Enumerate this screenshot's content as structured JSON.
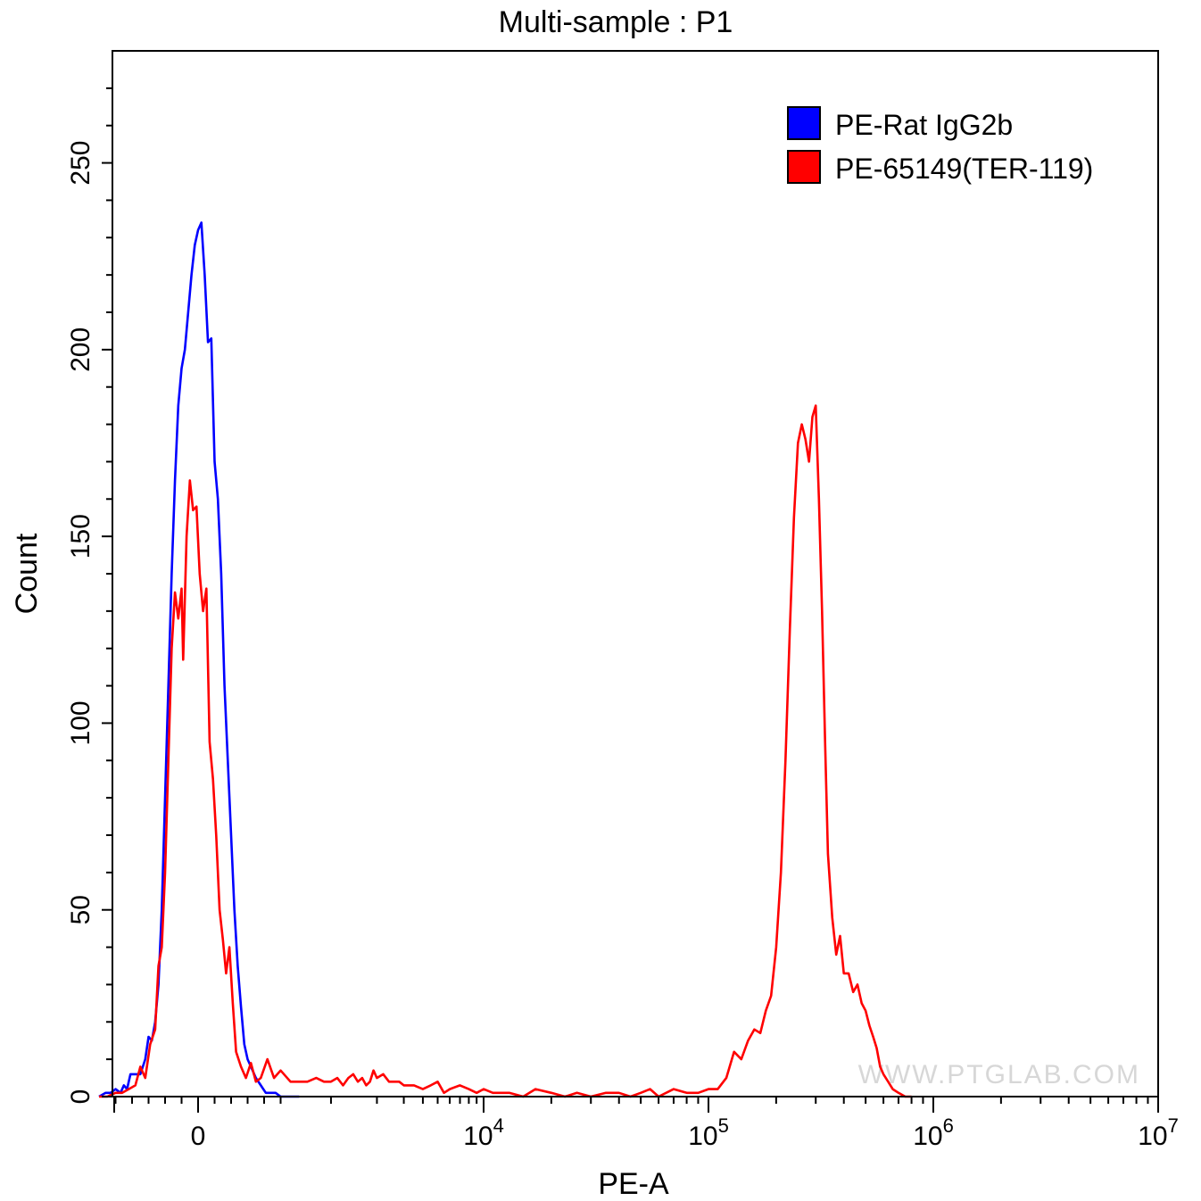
{
  "chart_data": {
    "type": "line",
    "title": "Multi-sample : P1",
    "xlabel": "PE-A",
    "ylabel": "Count",
    "x_scale": "biexponential",
    "x_ticks": [
      {
        "label": "0"
      },
      {
        "label": "10",
        "exp": "4"
      },
      {
        "label": "10",
        "exp": "5"
      },
      {
        "label": "10",
        "exp": "6"
      },
      {
        "label": "10",
        "exp": "7"
      }
    ],
    "y_ticks": [
      "0",
      "50",
      "100",
      "150",
      "200",
      "250"
    ],
    "ylim": [
      0,
      280
    ],
    "legend": {
      "placement": "top-right",
      "entries": [
        {
          "name": "PE-Rat IgG2b",
          "color": "#0000ff"
        },
        {
          "name": "PE-65149(TER-119)",
          "color": "#ff0000"
        }
      ]
    },
    "watermark": "WWW.PTGLAB.COM",
    "series": [
      {
        "name": "PE-Rat IgG2b",
        "color": "#0000ff",
        "points": [
          [
            -600,
            0
          ],
          [
            -560,
            1
          ],
          [
            -530,
            1
          ],
          [
            -500,
            2
          ],
          [
            -470,
            1
          ],
          [
            -450,
            3
          ],
          [
            -430,
            2
          ],
          [
            -410,
            6
          ],
          [
            -380,
            6
          ],
          [
            -350,
            6
          ],
          [
            -320,
            10
          ],
          [
            -300,
            16
          ],
          [
            -280,
            15
          ],
          [
            -260,
            20
          ],
          [
            -240,
            30
          ],
          [
            -220,
            50
          ],
          [
            -200,
            80
          ],
          [
            -180,
            110
          ],
          [
            -160,
            140
          ],
          [
            -140,
            165
          ],
          [
            -120,
            185
          ],
          [
            -100,
            195
          ],
          [
            -80,
            200
          ],
          [
            -60,
            210
          ],
          [
            -40,
            220
          ],
          [
            -20,
            228
          ],
          [
            0,
            232
          ],
          [
            20,
            234
          ],
          [
            40,
            220
          ],
          [
            60,
            202
          ],
          [
            80,
            203
          ],
          [
            100,
            170
          ],
          [
            120,
            160
          ],
          [
            140,
            140
          ],
          [
            160,
            110
          ],
          [
            180,
            90
          ],
          [
            200,
            70
          ],
          [
            220,
            50
          ],
          [
            240,
            35
          ],
          [
            260,
            24
          ],
          [
            280,
            14
          ],
          [
            300,
            10
          ],
          [
            320,
            8
          ],
          [
            350,
            5
          ],
          [
            380,
            3
          ],
          [
            410,
            1
          ],
          [
            440,
            1
          ],
          [
            470,
            1
          ],
          [
            500,
            0
          ],
          [
            530,
            0
          ],
          [
            570,
            0
          ],
          [
            620,
            0
          ]
        ]
      },
      {
        "name": "PE-65149(TER-119)",
        "color": "#ff0000",
        "points": [
          [
            -600,
            0
          ],
          [
            -550,
            0
          ],
          [
            -500,
            1
          ],
          [
            -460,
            1
          ],
          [
            -420,
            2
          ],
          [
            -380,
            3
          ],
          [
            -350,
            8
          ],
          [
            -320,
            5
          ],
          [
            -290,
            14
          ],
          [
            -260,
            18
          ],
          [
            -240,
            35
          ],
          [
            -220,
            40
          ],
          [
            -200,
            60
          ],
          [
            -180,
            90
          ],
          [
            -160,
            120
          ],
          [
            -140,
            135
          ],
          [
            -120,
            128
          ],
          [
            -100,
            136
          ],
          [
            -90,
            117
          ],
          [
            -70,
            150
          ],
          [
            -50,
            165
          ],
          [
            -30,
            157
          ],
          [
            -10,
            158
          ],
          [
            10,
            140
          ],
          [
            30,
            130
          ],
          [
            50,
            136
          ],
          [
            70,
            95
          ],
          [
            90,
            85
          ],
          [
            110,
            70
          ],
          [
            130,
            50
          ],
          [
            150,
            42
          ],
          [
            170,
            33
          ],
          [
            190,
            40
          ],
          [
            210,
            25
          ],
          [
            230,
            12
          ],
          [
            260,
            8
          ],
          [
            290,
            5
          ],
          [
            320,
            9
          ],
          [
            350,
            4
          ],
          [
            380,
            5
          ],
          [
            420,
            10
          ],
          [
            460,
            5
          ],
          [
            500,
            7
          ],
          [
            560,
            4
          ],
          [
            620,
            4
          ],
          [
            700,
            4
          ],
          [
            800,
            5
          ],
          [
            900,
            4
          ],
          [
            1000,
            4
          ],
          [
            1100,
            5
          ],
          [
            1200,
            3
          ],
          [
            1300,
            5
          ],
          [
            1400,
            6
          ],
          [
            1500,
            4
          ],
          [
            1600,
            5
          ],
          [
            1700,
            3
          ],
          [
            1800,
            4
          ],
          [
            1900,
            7
          ],
          [
            2000,
            5
          ],
          [
            2200,
            6
          ],
          [
            2400,
            4
          ],
          [
            2600,
            4
          ],
          [
            2800,
            4
          ],
          [
            3000,
            3
          ],
          [
            3500,
            3
          ],
          [
            4000,
            2
          ],
          [
            4500,
            3
          ],
          [
            5000,
            4
          ],
          [
            5500,
            1
          ],
          [
            6000,
            2
          ],
          [
            7000,
            3
          ],
          [
            8000,
            2
          ],
          [
            9000,
            1
          ],
          [
            10000,
            2
          ],
          [
            11000,
            1
          ],
          [
            13000,
            1
          ],
          [
            15000,
            0
          ],
          [
            17000,
            2
          ],
          [
            20000,
            1
          ],
          [
            23000,
            0
          ],
          [
            26000,
            1
          ],
          [
            30000,
            0
          ],
          [
            35000,
            1
          ],
          [
            40000,
            1
          ],
          [
            45000,
            0
          ],
          [
            50000,
            1
          ],
          [
            55000,
            2
          ],
          [
            60000,
            0
          ],
          [
            70000,
            2
          ],
          [
            80000,
            1
          ],
          [
            90000,
            1
          ],
          [
            100000,
            2
          ],
          [
            110000,
            2
          ],
          [
            120000,
            5
          ],
          [
            130000,
            12
          ],
          [
            140000,
            10
          ],
          [
            150000,
            15
          ],
          [
            160000,
            18
          ],
          [
            170000,
            17
          ],
          [
            180000,
            23
          ],
          [
            190000,
            27
          ],
          [
            200000,
            40
          ],
          [
            210000,
            60
          ],
          [
            220000,
            90
          ],
          [
            230000,
            125
          ],
          [
            240000,
            155
          ],
          [
            250000,
            175
          ],
          [
            260000,
            180
          ],
          [
            270000,
            176
          ],
          [
            280000,
            170
          ],
          [
            290000,
            182
          ],
          [
            300000,
            185
          ],
          [
            310000,
            160
          ],
          [
            320000,
            130
          ],
          [
            330000,
            95
          ],
          [
            340000,
            65
          ],
          [
            355000,
            48
          ],
          [
            370000,
            38
          ],
          [
            385000,
            43
          ],
          [
            400000,
            33
          ],
          [
            420000,
            33
          ],
          [
            440000,
            28
          ],
          [
            460000,
            30
          ],
          [
            480000,
            25
          ],
          [
            500000,
            23
          ],
          [
            520000,
            19
          ],
          [
            540000,
            16
          ],
          [
            560000,
            13
          ],
          [
            580000,
            8
          ],
          [
            600000,
            6
          ],
          [
            630000,
            4
          ],
          [
            660000,
            2
          ],
          [
            700000,
            1
          ],
          [
            750000,
            0
          ],
          [
            800000,
            0
          ]
        ]
      }
    ]
  }
}
